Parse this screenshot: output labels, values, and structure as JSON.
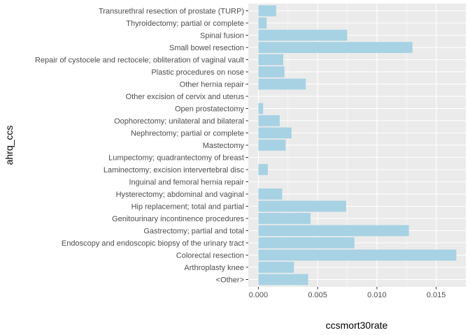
{
  "chart_data": {
    "type": "bar",
    "orientation": "horizontal",
    "categories": [
      "Transurethral resection of prostate (TURP)",
      "Thyroidectomy; partial or complete",
      "Spinal fusion",
      "Small bowel resection",
      "Repair of cystocele and rectocele; obliteration of vaginal vault",
      "Plastic procedures on nose",
      "Other hernia repair",
      "Other excision of cervix and uterus",
      "Open prostatectomy",
      "Oophorectomy; unilateral and bilateral",
      "Nephrectomy; partial or complete",
      "Mastectomy",
      "Lumpectomy; quadrantectomy of breast",
      "Laminectomy; excision intervertebral disc",
      "Inguinal and femoral hernia repair",
      "Hysterectomy; abdominal and vaginal",
      "Hip replacement; total and partial",
      "Genitourinary incontinence procedures",
      "Gastrectomy; partial and total",
      "Endoscopy and endoscopic biopsy of the urinary tract",
      "Colorectal resection",
      "Arthroplasty knee",
      "<Other>"
    ],
    "values": [
      0.0015,
      0.0007,
      0.0075,
      0.013,
      0.0021,
      0.0022,
      0.004,
      0.0,
      0.0004,
      0.0018,
      0.0028,
      0.0023,
      0.0,
      0.0008,
      0.0,
      0.002,
      0.0074,
      0.0044,
      0.0127,
      0.0081,
      0.0167,
      0.003,
      0.0042
    ],
    "xlabel": "ccsmort30rate",
    "ylabel": "ahrq_ccs",
    "xlim": [
      -0.00085,
      0.0175
    ],
    "xticks": [
      0.0,
      0.005,
      0.01,
      0.015
    ],
    "xtick_labels": [
      "0.000",
      "0.005",
      "0.010",
      "0.015"
    ],
    "bar_color": "#a6d2e3",
    "panel_color": "#ebebeb",
    "grid": true
  }
}
